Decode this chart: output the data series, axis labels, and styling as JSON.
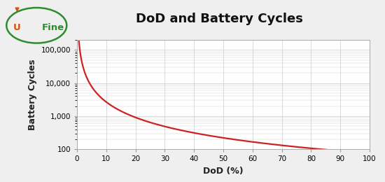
{
  "title": "DoD and Battery Cycles",
  "xlabel": "DoD (%)",
  "ylabel": "Battery Cycles",
  "line_color": "#cc2222",
  "line_width": 1.6,
  "background_color": "#efefef",
  "plot_bg_color": "#ffffff",
  "grid_color": "#cccccc",
  "x_ticks": [
    0,
    10,
    20,
    30,
    40,
    50,
    60,
    70,
    80,
    90,
    100
  ],
  "y_ticks": [
    100,
    1000,
    10000,
    100000
  ],
  "y_tick_labels": [
    "100",
    "1,000",
    "10,000",
    "100,000"
  ],
  "ylim_low": 100,
  "ylim_high": 200000,
  "xlim_low": 0,
  "xlim_high": 100,
  "curve_a": 95000,
  "curve_b": 1.55,
  "title_fontsize": 13,
  "axis_label_fontsize": 9,
  "tick_fontsize": 7.5,
  "logo_ellipse_color": "#2e8b2e",
  "logo_flame_color": "#d45010",
  "logo_text_color": "#2e8b2e"
}
